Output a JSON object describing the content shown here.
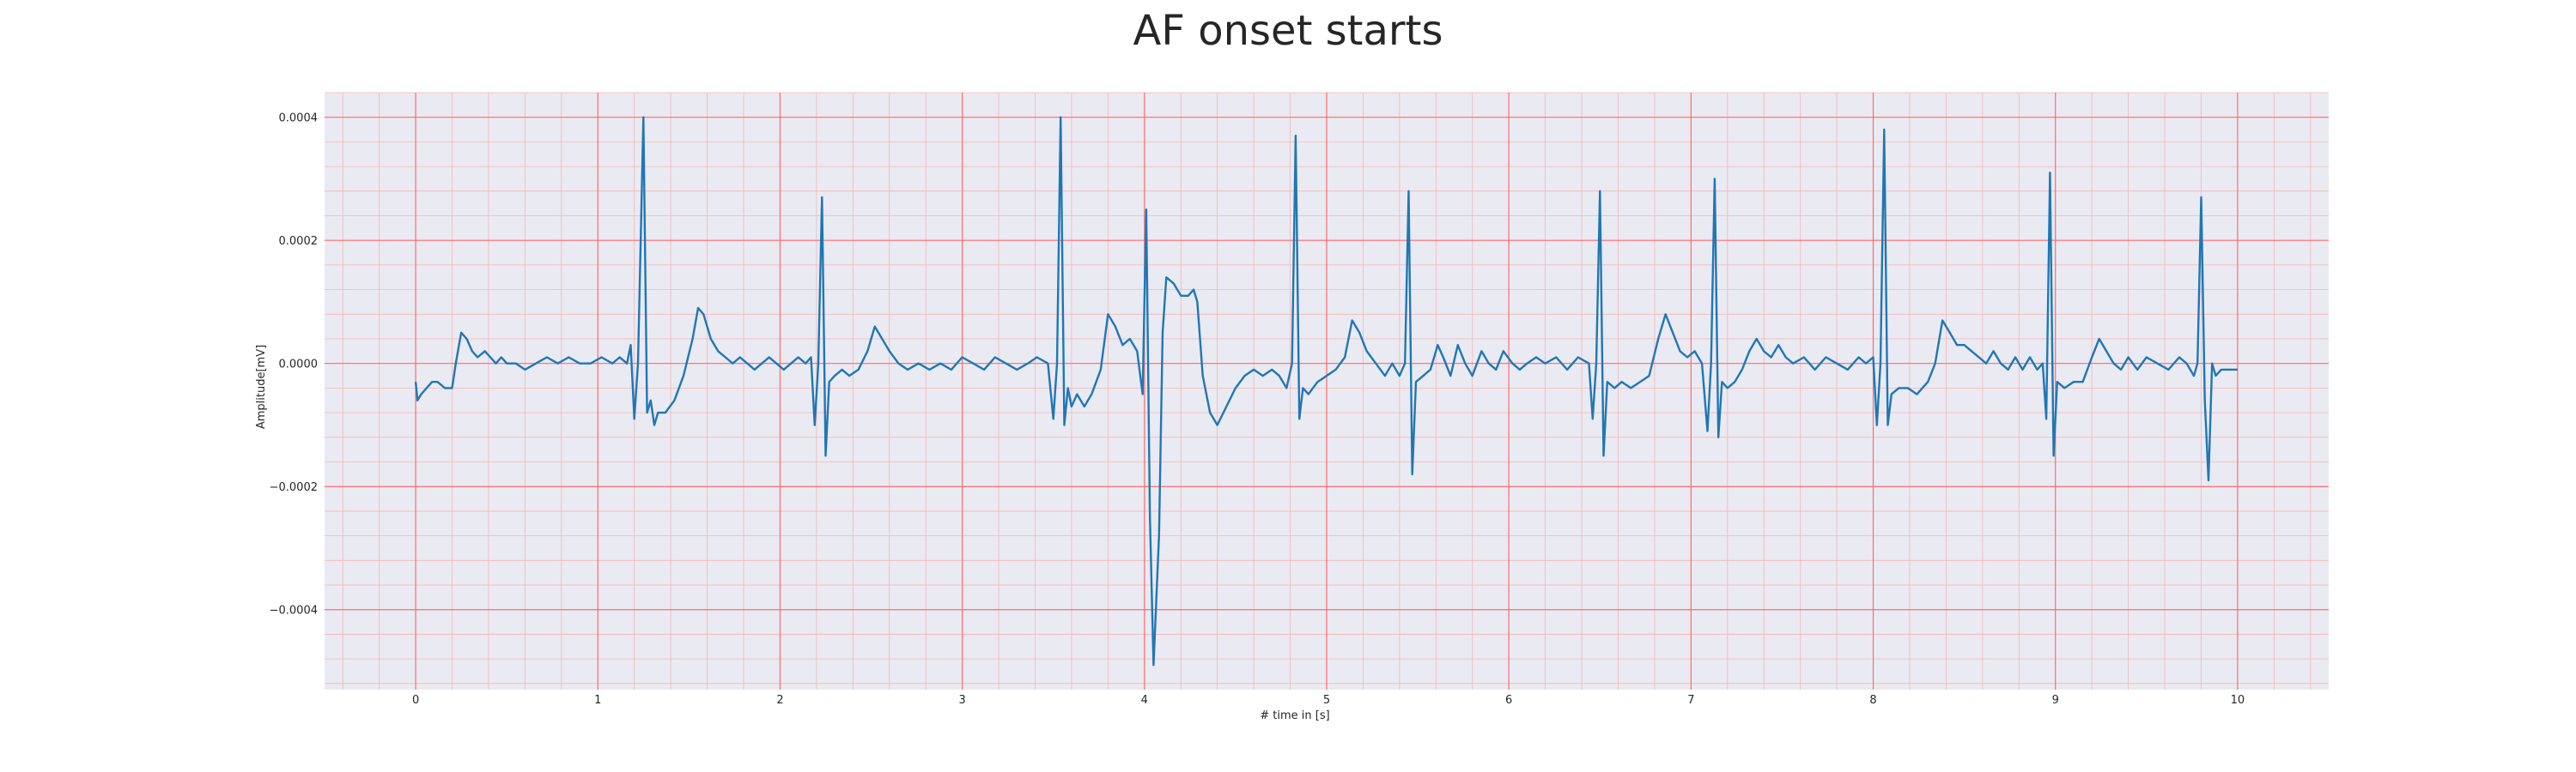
{
  "chart_data": {
    "type": "line",
    "title": "AF onset starts",
    "xlabel": "# time in [s]",
    "ylabel": "Amplitude[mV]",
    "xlim": [
      -0.5,
      10.5
    ],
    "ylim": [
      -0.00053,
      0.00044
    ],
    "x_ticks": [
      0,
      1,
      2,
      3,
      4,
      5,
      6,
      7,
      8,
      9,
      10
    ],
    "x_tick_labels": [
      "0",
      "1",
      "2",
      "3",
      "4",
      "5",
      "6",
      "7",
      "8",
      "9",
      "10"
    ],
    "y_ticks": [
      0.0004,
      0.0002,
      0.0,
      -0.0002,
      -0.0004
    ],
    "y_tick_labels": [
      "0.0004",
      "0.0002",
      "0.0000",
      "−0.0002",
      "−0.0004"
    ],
    "grid": "on",
    "colors": {
      "background": "#eaeaf2",
      "major_grid": "#ff6b6b",
      "minor_grid": "#f4b6b6",
      "line": "#1f77b4"
    },
    "series": [
      {
        "values": [
          [
            0.0,
            -3e-05
          ],
          [
            0.01,
            -6e-05
          ],
          [
            0.03,
            -5e-05
          ],
          [
            0.06,
            -4e-05
          ],
          [
            0.09,
            -3e-05
          ],
          [
            0.12,
            -3e-05
          ],
          [
            0.16,
            -4e-05
          ],
          [
            0.2,
            -4e-05
          ],
          [
            0.22,
            0.0
          ],
          [
            0.25,
            5e-05
          ],
          [
            0.28,
            4e-05
          ],
          [
            0.31,
            2e-05
          ],
          [
            0.34,
            1e-05
          ],
          [
            0.38,
            2e-05
          ],
          [
            0.41,
            1e-05
          ],
          [
            0.44,
            0.0
          ],
          [
            0.47,
            1e-05
          ],
          [
            0.5,
            0.0
          ],
          [
            0.55,
            0.0
          ],
          [
            0.6,
            -1e-05
          ],
          [
            0.66,
            0.0
          ],
          [
            0.72,
            1e-05
          ],
          [
            0.78,
            0.0
          ],
          [
            0.84,
            1e-05
          ],
          [
            0.9,
            0.0
          ],
          [
            0.96,
            0.0
          ],
          [
            1.02,
            1e-05
          ],
          [
            1.08,
            0.0
          ],
          [
            1.12,
            1e-05
          ],
          [
            1.16,
            0.0
          ],
          [
            1.18,
            3e-05
          ],
          [
            1.2,
            -9e-05
          ],
          [
            1.22,
            0.0
          ],
          [
            1.25,
            0.0004
          ],
          [
            1.27,
            -8e-05
          ],
          [
            1.29,
            -6e-05
          ],
          [
            1.31,
            -0.0001
          ],
          [
            1.33,
            -8e-05
          ],
          [
            1.37,
            -8e-05
          ],
          [
            1.42,
            -6e-05
          ],
          [
            1.47,
            -2e-05
          ],
          [
            1.52,
            4e-05
          ],
          [
            1.55,
            9e-05
          ],
          [
            1.58,
            8e-05
          ],
          [
            1.62,
            4e-05
          ],
          [
            1.66,
            2e-05
          ],
          [
            1.7,
            1e-05
          ],
          [
            1.74,
            0.0
          ],
          [
            1.78,
            1e-05
          ],
          [
            1.82,
            0.0
          ],
          [
            1.86,
            -1e-05
          ],
          [
            1.9,
            0.0
          ],
          [
            1.94,
            1e-05
          ],
          [
            1.98,
            0.0
          ],
          [
            2.02,
            -1e-05
          ],
          [
            2.06,
            0.0
          ],
          [
            2.1,
            1e-05
          ],
          [
            2.14,
            0.0
          ],
          [
            2.17,
            1e-05
          ],
          [
            2.19,
            -0.0001
          ],
          [
            2.21,
            0.0
          ],
          [
            2.23,
            0.00027
          ],
          [
            2.25,
            -0.00015
          ],
          [
            2.27,
            -3e-05
          ],
          [
            2.3,
            -2e-05
          ],
          [
            2.34,
            -1e-05
          ],
          [
            2.38,
            -2e-05
          ],
          [
            2.43,
            -1e-05
          ],
          [
            2.48,
            2e-05
          ],
          [
            2.52,
            6e-05
          ],
          [
            2.56,
            4e-05
          ],
          [
            2.6,
            2e-05
          ],
          [
            2.65,
            0.0
          ],
          [
            2.7,
            -1e-05
          ],
          [
            2.76,
            0.0
          ],
          [
            2.82,
            -1e-05
          ],
          [
            2.88,
            0.0
          ],
          [
            2.94,
            -1e-05
          ],
          [
            3.0,
            1e-05
          ],
          [
            3.06,
            0.0
          ],
          [
            3.12,
            -1e-05
          ],
          [
            3.18,
            1e-05
          ],
          [
            3.24,
            0.0
          ],
          [
            3.3,
            -1e-05
          ],
          [
            3.36,
            0.0
          ],
          [
            3.41,
            1e-05
          ],
          [
            3.47,
            0.0
          ],
          [
            3.5,
            -9e-05
          ],
          [
            3.52,
            0.0
          ],
          [
            3.54,
            0.0004
          ],
          [
            3.56,
            -0.0001
          ],
          [
            3.58,
            -4e-05
          ],
          [
            3.6,
            -7e-05
          ],
          [
            3.63,
            -5e-05
          ],
          [
            3.67,
            -7e-05
          ],
          [
            3.71,
            -5e-05
          ],
          [
            3.76,
            -1e-05
          ],
          [
            3.8,
            8e-05
          ],
          [
            3.84,
            6e-05
          ],
          [
            3.88,
            3e-05
          ],
          [
            3.92,
            4e-05
          ],
          [
            3.96,
            2e-05
          ],
          [
            3.99,
            -5e-05
          ],
          [
            4.01,
            0.00025
          ],
          [
            4.03,
            -0.00025
          ],
          [
            4.05,
            -0.00049
          ],
          [
            4.08,
            -0.00028
          ],
          [
            4.1,
            5e-05
          ],
          [
            4.12,
            0.00014
          ],
          [
            4.16,
            0.00013
          ],
          [
            4.2,
            0.00011
          ],
          [
            4.24,
            0.00011
          ],
          [
            4.27,
            0.00012
          ],
          [
            4.29,
            0.0001
          ],
          [
            4.32,
            -2e-05
          ],
          [
            4.36,
            -8e-05
          ],
          [
            4.4,
            -0.0001
          ],
          [
            4.45,
            -7e-05
          ],
          [
            4.5,
            -4e-05
          ],
          [
            4.55,
            -2e-05
          ],
          [
            4.6,
            -1e-05
          ],
          [
            4.65,
            -2e-05
          ],
          [
            4.7,
            -1e-05
          ],
          [
            4.74,
            -2e-05
          ],
          [
            4.78,
            -4e-05
          ],
          [
            4.81,
            0.0
          ],
          [
            4.83,
            0.00037
          ],
          [
            4.85,
            -9e-05
          ],
          [
            4.87,
            -4e-05
          ],
          [
            4.9,
            -5e-05
          ],
          [
            4.95,
            -3e-05
          ],
          [
            5.0,
            -2e-05
          ],
          [
            5.05,
            -1e-05
          ],
          [
            5.1,
            1e-05
          ],
          [
            5.14,
            7e-05
          ],
          [
            5.18,
            5e-05
          ],
          [
            5.22,
            2e-05
          ],
          [
            5.27,
            0.0
          ],
          [
            5.32,
            -2e-05
          ],
          [
            5.36,
            0.0
          ],
          [
            5.4,
            -2e-05
          ],
          [
            5.43,
            0.0
          ],
          [
            5.45,
            0.00028
          ],
          [
            5.47,
            -0.00018
          ],
          [
            5.49,
            -3e-05
          ],
          [
            5.53,
            -2e-05
          ],
          [
            5.57,
            -1e-05
          ],
          [
            5.61,
            3e-05
          ],
          [
            5.64,
            1e-05
          ],
          [
            5.68,
            -2e-05
          ],
          [
            5.72,
            3e-05
          ],
          [
            5.76,
            0.0
          ],
          [
            5.8,
            -2e-05
          ],
          [
            5.85,
            2e-05
          ],
          [
            5.89,
            0.0
          ],
          [
            5.93,
            -1e-05
          ],
          [
            5.97,
            2e-05
          ],
          [
            6.02,
            0.0
          ],
          [
            6.06,
            -1e-05
          ],
          [
            6.1,
            0.0
          ],
          [
            6.15,
            1e-05
          ],
          [
            6.2,
            0.0
          ],
          [
            6.26,
            1e-05
          ],
          [
            6.32,
            -1e-05
          ],
          [
            6.38,
            1e-05
          ],
          [
            6.44,
            0.0
          ],
          [
            6.46,
            -9e-05
          ],
          [
            6.48,
            0.0
          ],
          [
            6.5,
            0.00028
          ],
          [
            6.52,
            -0.00015
          ],
          [
            6.54,
            -3e-05
          ],
          [
            6.58,
            -4e-05
          ],
          [
            6.62,
            -3e-05
          ],
          [
            6.67,
            -4e-05
          ],
          [
            6.72,
            -3e-05
          ],
          [
            6.77,
            -2e-05
          ],
          [
            6.82,
            4e-05
          ],
          [
            6.86,
            8e-05
          ],
          [
            6.9,
            5e-05
          ],
          [
            6.94,
            2e-05
          ],
          [
            6.98,
            1e-05
          ],
          [
            7.02,
            2e-05
          ],
          [
            7.06,
            0.0
          ],
          [
            7.09,
            -0.00011
          ],
          [
            7.11,
            0.0
          ],
          [
            7.13,
            0.0003
          ],
          [
            7.15,
            -0.00012
          ],
          [
            7.17,
            -3e-05
          ],
          [
            7.2,
            -4e-05
          ],
          [
            7.24,
            -3e-05
          ],
          [
            7.28,
            -1e-05
          ],
          [
            7.32,
            2e-05
          ],
          [
            7.36,
            4e-05
          ],
          [
            7.4,
            2e-05
          ],
          [
            7.44,
            1e-05
          ],
          [
            7.48,
            3e-05
          ],
          [
            7.52,
            1e-05
          ],
          [
            7.56,
            0.0
          ],
          [
            7.62,
            1e-05
          ],
          [
            7.68,
            -1e-05
          ],
          [
            7.74,
            1e-05
          ],
          [
            7.8,
            0.0
          ],
          [
            7.86,
            -1e-05
          ],
          [
            7.92,
            1e-05
          ],
          [
            7.96,
            0.0
          ],
          [
            8.0,
            1e-05
          ],
          [
            8.02,
            -0.0001
          ],
          [
            8.04,
            0.0
          ],
          [
            8.06,
            0.00038
          ],
          [
            8.08,
            -0.0001
          ],
          [
            8.1,
            -5e-05
          ],
          [
            8.14,
            -4e-05
          ],
          [
            8.19,
            -4e-05
          ],
          [
            8.24,
            -5e-05
          ],
          [
            8.3,
            -3e-05
          ],
          [
            8.34,
            0.0
          ],
          [
            8.38,
            7e-05
          ],
          [
            8.42,
            5e-05
          ],
          [
            8.46,
            3e-05
          ],
          [
            8.5,
            3e-05
          ],
          [
            8.54,
            2e-05
          ],
          [
            8.58,
            1e-05
          ],
          [
            8.62,
            0.0
          ],
          [
            8.66,
            2e-05
          ],
          [
            8.7,
            0.0
          ],
          [
            8.74,
            -1e-05
          ],
          [
            8.78,
            1e-05
          ],
          [
            8.82,
            -1e-05
          ],
          [
            8.86,
            1e-05
          ],
          [
            8.9,
            -1e-05
          ],
          [
            8.93,
            0.0
          ],
          [
            8.95,
            -9e-05
          ],
          [
            8.97,
            0.00031
          ],
          [
            8.99,
            -0.00015
          ],
          [
            9.01,
            -3e-05
          ],
          [
            9.05,
            -4e-05
          ],
          [
            9.1,
            -3e-05
          ],
          [
            9.15,
            -3e-05
          ],
          [
            9.2,
            1e-05
          ],
          [
            9.24,
            4e-05
          ],
          [
            9.28,
            2e-05
          ],
          [
            9.32,
            0.0
          ],
          [
            9.36,
            -1e-05
          ],
          [
            9.4,
            1e-05
          ],
          [
            9.45,
            -1e-05
          ],
          [
            9.5,
            1e-05
          ],
          [
            9.56,
            0.0
          ],
          [
            9.62,
            -1e-05
          ],
          [
            9.68,
            1e-05
          ],
          [
            9.72,
            0.0
          ],
          [
            9.76,
            -2e-05
          ],
          [
            9.78,
            0.0
          ],
          [
            9.8,
            0.00027
          ],
          [
            9.82,
            -6e-05
          ],
          [
            9.84,
            -0.00019
          ],
          [
            9.86,
            0.0
          ],
          [
            9.88,
            -2e-05
          ],
          [
            9.91,
            -1e-05
          ],
          [
            9.95,
            -1e-05
          ],
          [
            10.0,
            -1e-05
          ]
        ]
      }
    ]
  }
}
